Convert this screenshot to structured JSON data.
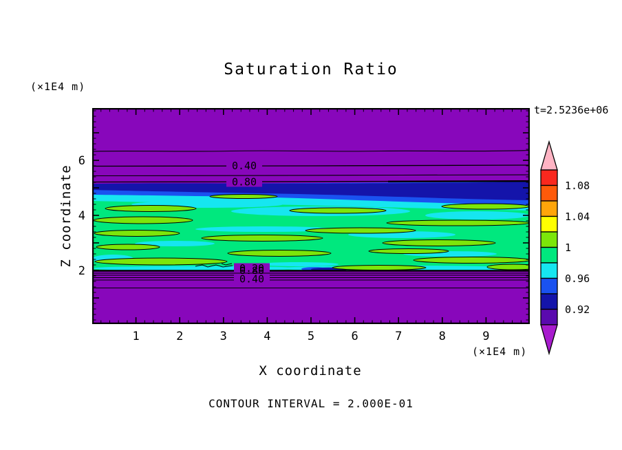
{
  "chart_data": {
    "type": "heatmap",
    "variant": "filled-contour-plot",
    "title": "Saturation Ratio",
    "time_label": "t=2.5236e+06",
    "xlabel": "X coordinate",
    "ylabel": "Z coordinate",
    "x_unit_label": "(×1E4 m)",
    "y_unit_label": "(×1E4 m)",
    "contour_interval_label": "CONTOUR INTERVAL = 2.000E-01",
    "x_range": [
      0,
      10
    ],
    "y_range": [
      0,
      7.9
    ],
    "x_tick_labels": [
      "1",
      "2",
      "3",
      "4",
      "5",
      "6",
      "7",
      "8",
      "9"
    ],
    "y_tick_labels": [
      "2",
      "4",
      "6"
    ],
    "major_tick_step": 1,
    "minor_tick_step": 0.2,
    "grid": false,
    "legend_position": "right-colorbar",
    "line_contour_values": [
      0.2,
      0.4,
      0.6,
      0.8
    ],
    "contour_line_labels": [
      {
        "text": "0.40",
        "x": 3.43,
        "z": 5.83
      },
      {
        "text": "0.80",
        "x": 3.43,
        "z": 5.24
      },
      {
        "text": "0.20",
        "x": 3.65,
        "z": 2.1
      },
      {
        "text": "0.80",
        "x": 3.65,
        "z": 2.04
      },
      {
        "text": "0.40",
        "x": 3.65,
        "z": 1.73
      }
    ],
    "field_summary": {
      "background": "far field saturation < 0.2 (purple, below colorbar range)",
      "saturated_zone_z_range": [
        2.0,
        5.1
      ],
      "saturated_zone": "S ~ 0.94-1.02: spring-green body (0.98-1.0) with chartreuse lenses (1.0-1.02, black 1.0 contour outlines) and cyan patches (0.96-0.98); navy/blue band at top of zone (0.92-0.96)",
      "line_contours": "horizontal contours 0.2/0.4/0.6/0.8 above zone near z=5.2-6.4 and bunched below zone near z=1.7-2.0"
    },
    "colorbar": {
      "labels": [
        "1.08",
        "1.04",
        "1",
        "0.96",
        "0.92"
      ],
      "levels_top_to_bottom": [
        1.1,
        1.08,
        1.06,
        1.04,
        1.02,
        1.0,
        0.98,
        0.96,
        0.94,
        0.92,
        0.9
      ],
      "colors_top_to_bottom": [
        "#FA281E",
        "#FF5A0A",
        "#FFA50A",
        "#FFFF00",
        "#7CE60A",
        "#00E87E",
        "#16E6F0",
        "#1A52F0",
        "#1414AA",
        "#5A0AAE"
      ],
      "above_range_color": "#FFB4C4",
      "below_range_color": "#A81CCE"
    },
    "palette": {
      "background_purple": "#8807BB",
      "navy": "#1414AA",
      "blue": "#1A52F0",
      "cyan": "#16E6F0",
      "springgreen": "#00E87E",
      "chartreuse": "#7CE60A",
      "contour_line": "#000000"
    }
  }
}
